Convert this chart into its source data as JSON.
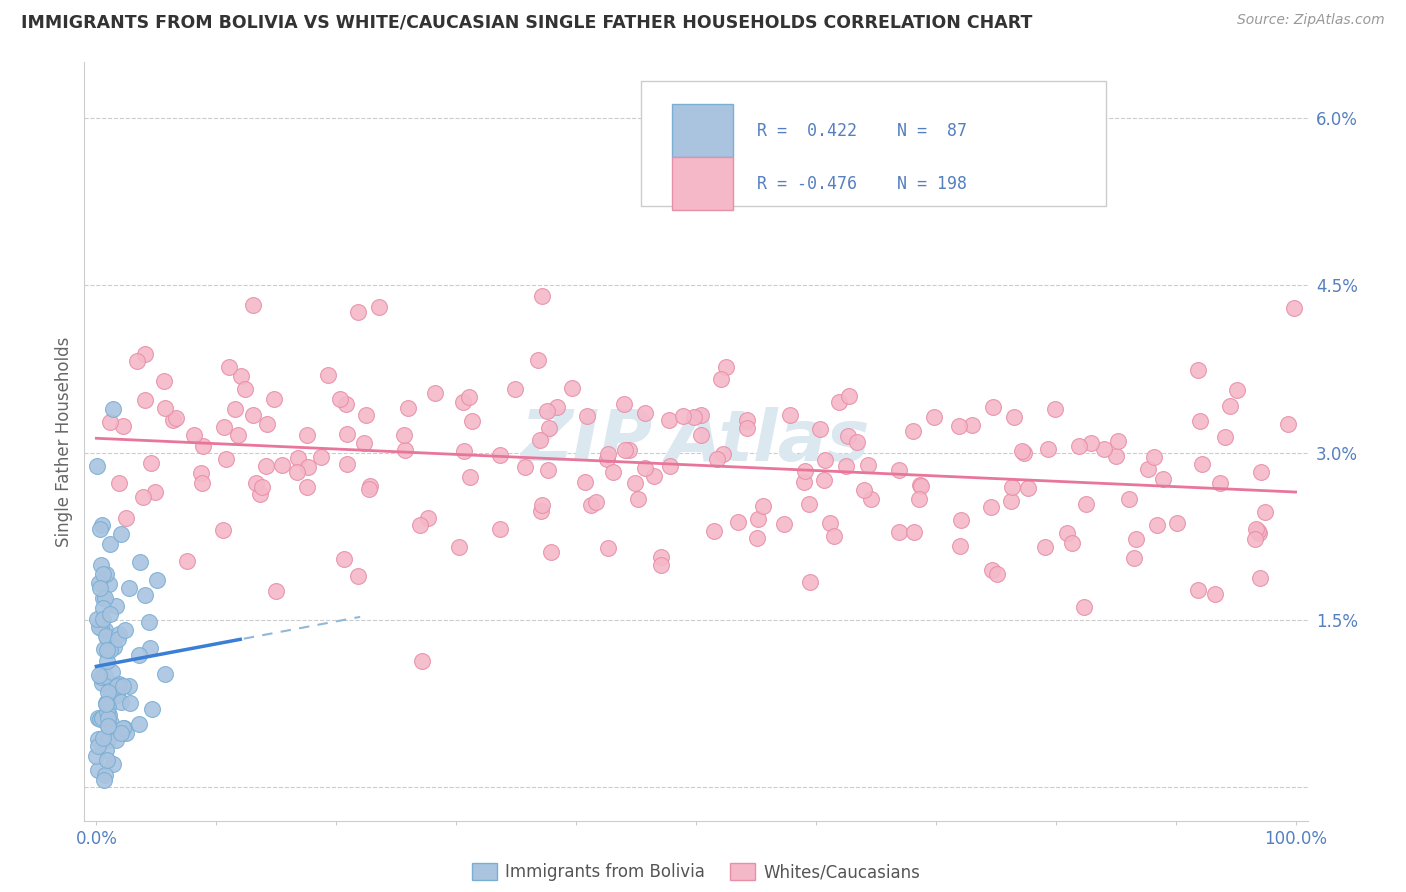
{
  "title": "IMMIGRANTS FROM BOLIVIA VS WHITE/CAUCASIAN SINGLE FATHER HOUSEHOLDS CORRELATION CHART",
  "source": "Source: ZipAtlas.com",
  "ylabel": "Single Father Households",
  "legend_blue_label": "Immigrants from Bolivia",
  "legend_pink_label": "Whites/Caucasians",
  "blue_R": 0.422,
  "blue_N": 87,
  "pink_R": -0.476,
  "pink_N": 198,
  "xlim": [
    -1,
    101
  ],
  "ylim": [
    -0.3,
    6.5
  ],
  "yticks": [
    0,
    1.5,
    3.0,
    4.5,
    6.0
  ],
  "ytick_labels": [
    "",
    "1.5%",
    "3.0%",
    "4.5%",
    "6.0%"
  ],
  "xticks": [
    0,
    10,
    20,
    30,
    40,
    50,
    60,
    70,
    80,
    90,
    100
  ],
  "xtick_labels": [
    "0.0%",
    "",
    "",
    "",
    "",
    "",
    "",
    "",
    "",
    "",
    "100.0%"
  ],
  "background_color": "#ffffff",
  "grid_color": "#cccccc",
  "blue_dot_color": "#aac4e0",
  "blue_dot_edge": "#7aafd4",
  "pink_dot_color": "#f5b8c8",
  "pink_dot_edge": "#e88fa8",
  "blue_line_color": "#3a7fd5",
  "pink_line_color": "#e8759a",
  "dashed_line_color": "#90b8d8",
  "tick_color": "#5580c0",
  "text_color": "#333333",
  "source_color": "#999999",
  "ylabel_color": "#666666",
  "watermark_color": "#dce8f0",
  "legend_border_color": "#cccccc"
}
